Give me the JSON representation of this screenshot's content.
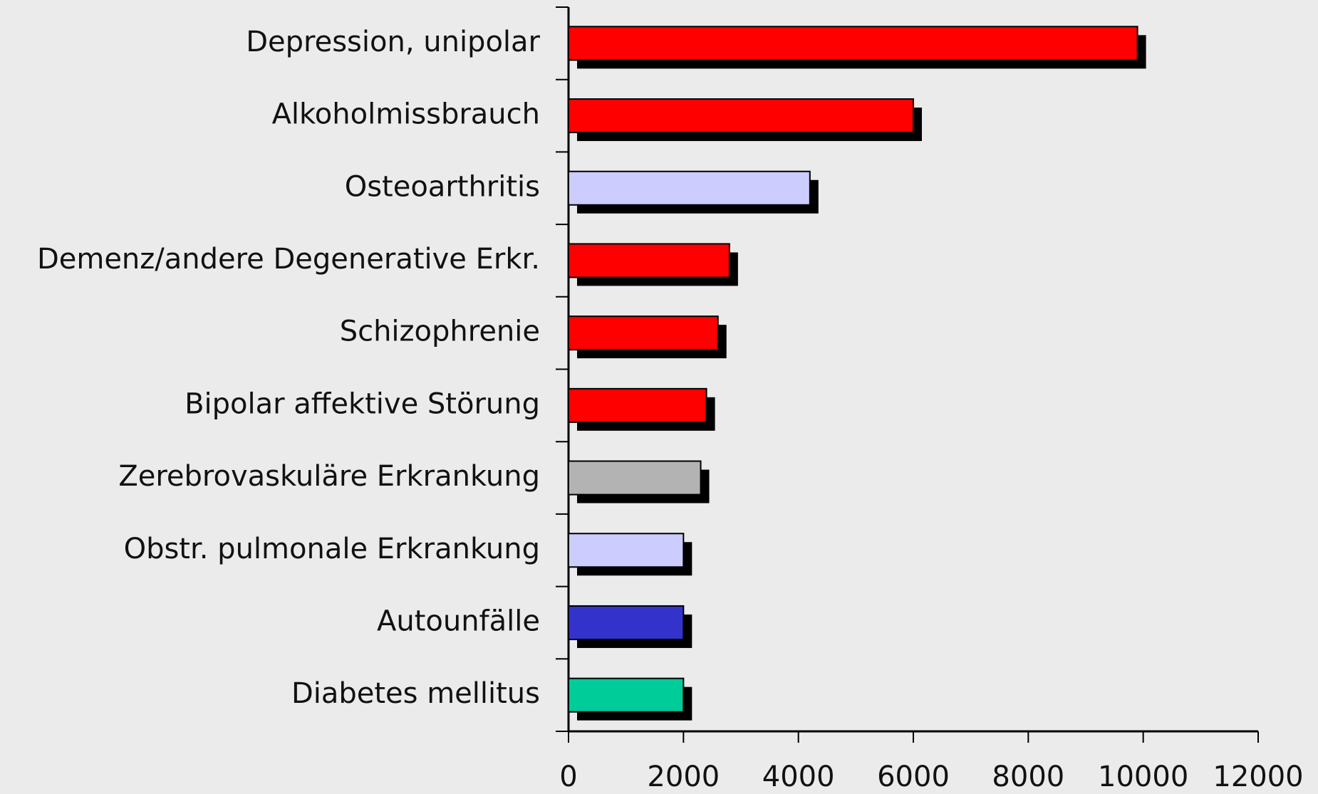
{
  "chart_data": {
    "type": "barh",
    "categories": [
      "Depression, unipolar",
      "Alkoholmissbrauch",
      "Osteoarthritis",
      "Demenz/andere Degenerative Erkr.",
      "Schizophrenie",
      "Bipolar affektive Störung",
      "Zerebrovaskuläre Erkrankung",
      "Obstr. pulmonale Erkrankung",
      "Autounfälle",
      "Diabetes mellitus"
    ],
    "values": [
      9900,
      6000,
      4200,
      2800,
      2600,
      2400,
      2300,
      2000,
      2000,
      2000
    ],
    "colors": [
      "#ff0000",
      "#ff0000",
      "#ccccff",
      "#ff0000",
      "#ff0000",
      "#ff0000",
      "#b3b3b3",
      "#ccccff",
      "#3333cc",
      "#00cc99"
    ],
    "xlim": [
      0,
      12000
    ],
    "xticks": [
      0,
      2000,
      4000,
      6000,
      8000,
      10000,
      12000
    ],
    "grid": false
  }
}
